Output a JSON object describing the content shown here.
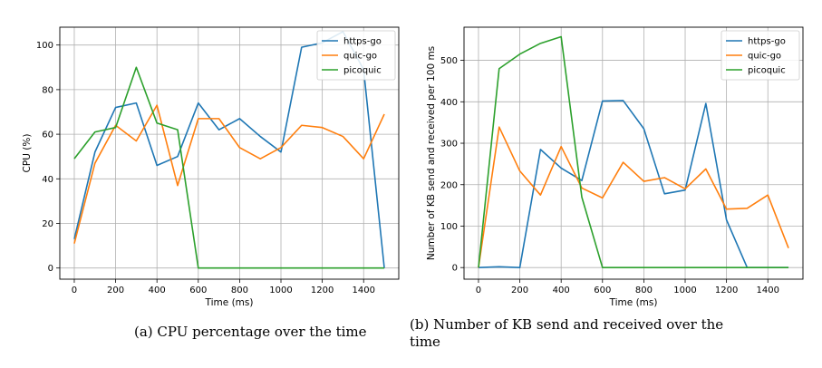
{
  "charts": [
    {
      "type": "line",
      "xlabel": "Time (ms)",
      "ylabel": "CPU (%)",
      "xlim": [
        -70,
        1570
      ],
      "ylim": [
        -5,
        108
      ],
      "xticks": [
        0,
        200,
        400,
        600,
        800,
        1000,
        1200,
        1400
      ],
      "yticks": [
        0,
        20,
        40,
        60,
        80,
        100
      ],
      "grid": true,
      "legend_position": "top-right",
      "series": [
        {
          "name": "https-go",
          "color": "#1f77b4",
          "x": [
            0,
            100,
            200,
            300,
            400,
            500,
            600,
            700,
            800,
            900,
            1000,
            1100,
            1200,
            1300,
            1400,
            1500
          ],
          "y": [
            13,
            52,
            72,
            74,
            46,
            50,
            74,
            62,
            67,
            59,
            52,
            99,
            101,
            106,
            89,
            0
          ]
        },
        {
          "name": "quic-go",
          "color": "#ff7f0e",
          "x": [
            0,
            100,
            200,
            300,
            400,
            500,
            600,
            700,
            800,
            900,
            1000,
            1100,
            1200,
            1300,
            1400,
            1500
          ],
          "y": [
            11,
            47,
            64,
            57,
            73,
            37,
            67,
            67,
            54,
            49,
            54,
            64,
            63,
            59,
            49,
            69
          ]
        },
        {
          "name": "picoquic",
          "color": "#2ca02c",
          "x": [
            0,
            100,
            200,
            300,
            400,
            500,
            600,
            700,
            800,
            900,
            1000,
            1100,
            1200,
            1300,
            1400,
            1500
          ],
          "y": [
            49,
            61,
            63,
            90,
            65,
            62,
            0,
            0,
            0,
            0,
            0,
            0,
            0,
            0,
            0,
            0
          ]
        }
      ]
    },
    {
      "type": "line",
      "xlabel": "Time (ms)",
      "ylabel": "Number of KB send and received per 100 ms",
      "xlim": [
        -70,
        1570
      ],
      "ylim": [
        -28,
        580
      ],
      "xticks": [
        0,
        200,
        400,
        600,
        800,
        1000,
        1200,
        1400
      ],
      "yticks": [
        0,
        100,
        200,
        300,
        400,
        500
      ],
      "grid": true,
      "legend_position": "top-right",
      "series": [
        {
          "name": "https-go",
          "color": "#1f77b4",
          "x": [
            0,
            100,
            200,
            300,
            400,
            500,
            600,
            700,
            800,
            900,
            1000,
            1100,
            1200,
            1300,
            1400,
            1500
          ],
          "y": [
            0,
            2,
            0,
            285,
            240,
            210,
            402,
            403,
            335,
            178,
            187,
            396,
            115,
            0,
            0,
            0
          ]
        },
        {
          "name": "quic-go",
          "color": "#ff7f0e",
          "x": [
            0,
            100,
            200,
            300,
            400,
            500,
            600,
            700,
            800,
            900,
            1000,
            1100,
            1200,
            1300,
            1400,
            1500
          ],
          "y": [
            0,
            339,
            233,
            175,
            292,
            192,
            168,
            254,
            208,
            217,
            190,
            238,
            141,
            143,
            175,
            47
          ]
        },
        {
          "name": "picoquic",
          "color": "#2ca02c",
          "x": [
            0,
            100,
            200,
            300,
            400,
            500,
            600,
            700,
            800,
            900,
            1000,
            1100,
            1200,
            1300,
            1400,
            1500
          ],
          "y": [
            0,
            480,
            515,
            541,
            557,
            170,
            0,
            0,
            0,
            0,
            0,
            0,
            0,
            0,
            0,
            0
          ]
        }
      ]
    }
  ],
  "chart_data": [
    {
      "type": "line",
      "xlabel": "Time (ms)",
      "ylabel": "CPU (%)",
      "x": [
        0,
        100,
        200,
        300,
        400,
        500,
        600,
        700,
        800,
        900,
        1000,
        1100,
        1200,
        1300,
        1400,
        1500
      ],
      "series": [
        {
          "name": "https-go",
          "values": [
            13,
            52,
            72,
            74,
            46,
            50,
            74,
            62,
            67,
            59,
            52,
            99,
            101,
            106,
            89,
            0
          ]
        },
        {
          "name": "quic-go",
          "values": [
            11,
            47,
            64,
            57,
            73,
            37,
            67,
            67,
            54,
            49,
            54,
            64,
            63,
            59,
            49,
            69
          ]
        },
        {
          "name": "picoquic",
          "values": [
            49,
            61,
            63,
            90,
            65,
            62,
            0,
            0,
            0,
            0,
            0,
            0,
            0,
            0,
            0,
            0
          ]
        }
      ],
      "xlim": [
        -70,
        1570
      ],
      "ylim": [
        -5,
        108
      ],
      "grid": true,
      "legend": "top-right"
    },
    {
      "type": "line",
      "xlabel": "Time (ms)",
      "ylabel": "Number of KB send and received per 100 ms",
      "x": [
        0,
        100,
        200,
        300,
        400,
        500,
        600,
        700,
        800,
        900,
        1000,
        1100,
        1200,
        1300,
        1400,
        1500
      ],
      "series": [
        {
          "name": "https-go",
          "values": [
            0,
            2,
            0,
            285,
            240,
            210,
            402,
            403,
            335,
            178,
            187,
            396,
            115,
            0,
            0,
            0
          ]
        },
        {
          "name": "quic-go",
          "values": [
            0,
            339,
            233,
            175,
            292,
            192,
            168,
            254,
            208,
            217,
            190,
            238,
            141,
            143,
            175,
            47
          ]
        },
        {
          "name": "picoquic",
          "values": [
            0,
            480,
            515,
            541,
            557,
            170,
            0,
            0,
            0,
            0,
            0,
            0,
            0,
            0,
            0,
            0
          ]
        }
      ],
      "xlim": [
        -70,
        1570
      ],
      "ylim": [
        -28,
        580
      ],
      "grid": true,
      "legend": "top-right"
    }
  ],
  "captions": {
    "a": "(a) CPU percentage over the time",
    "b": "(b) Number of KB send and received over the time"
  }
}
